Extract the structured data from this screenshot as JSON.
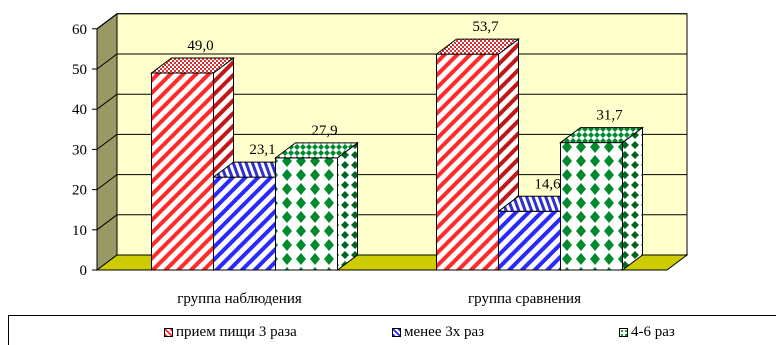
{
  "chart_data": {
    "type": "bar",
    "categories": [
      "группа наблюдения",
      "группа сравнения"
    ],
    "series": [
      {
        "name": "прием пищи 3 раза",
        "values": [
          49.0,
          53.7
        ],
        "labels": [
          "49,0",
          "53,7"
        ],
        "color": "#ff3333",
        "pattern": "diagonal-stripes"
      },
      {
        "name": "менее 3х раз",
        "values": [
          23.1,
          14.6
        ],
        "labels": [
          "23,1",
          "14,6"
        ],
        "color": "#3333ff",
        "pattern": "diagonal-stripes"
      },
      {
        "name": "4-6 раз",
        "values": [
          27.9,
          31.7
        ],
        "labels": [
          "27,9",
          "31,7"
        ],
        "color": "#009933",
        "pattern": "checker"
      }
    ],
    "ylim": [
      0,
      60
    ],
    "yticks": [
      0,
      10,
      20,
      30,
      40,
      50,
      60
    ],
    "grid": true,
    "legend": "bottom",
    "plot_background": "#ffffcc",
    "floor_color": "#cccc00",
    "wall_color": "#999966"
  }
}
